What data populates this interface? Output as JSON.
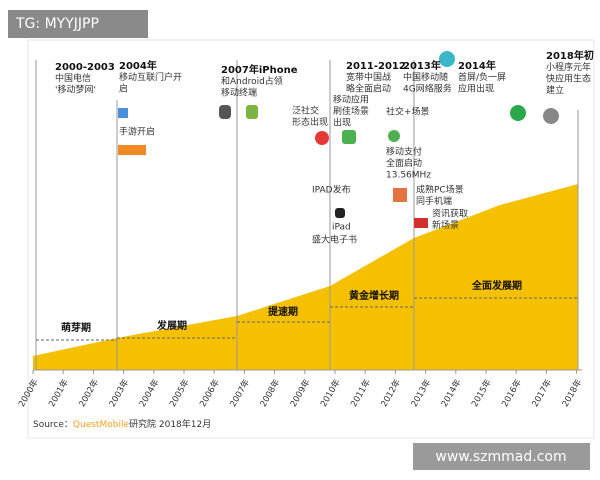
{
  "watermark_top": "TG: MYYJJPP",
  "milestones": [
    {
      "lines": [
        "2000-2003",
        "中国电信",
        "'移动梦网'"
      ]
    },
    {
      "lines": [
        "2004年",
        "移动互联门户开",
        "启"
      ]
    },
    {
      "lines": [
        "2007年iPhone",
        "和Android占领",
        "移动终端"
      ]
    },
    {
      "lines": [
        "2011-2012",
        "宽带中国战",
        "略全面启动"
      ]
    },
    {
      "lines": [
        "2013年",
        "中国移动随",
        "4G网络服务"
      ]
    },
    {
      "lines": [
        "2014年",
        "首屏/负一屏",
        "应用出现"
      ]
    },
    {
      "lines": [
        "2018年初",
        "小程序元年",
        "快应用生态",
        "建立"
      ]
    }
  ],
  "notes": [
    {
      "lines": [
        "手游开启"
      ]
    },
    {
      "lines": [
        "泛社交",
        "形态出现"
      ]
    },
    {
      "lines": [
        "移动应用",
        "刷佳场景",
        "出现"
      ]
    },
    {
      "lines": [
        "社交+场景"
      ]
    },
    {
      "lines": [
        "移动支付",
        "全面启动",
        "13.56MHz"
      ]
    },
    {
      "lines": [
        "IPAD发布"
      ]
    },
    {
      "lines": [
        "iPad"
      ]
    },
    {
      "lines": [
        "盛大电子书"
      ]
    },
    {
      "lines": [
        "成熟PC场景",
        "同手机端"
      ]
    },
    {
      "lines": [
        "资讯获取",
        "新场景"
      ]
    }
  ],
  "phases": [
    "萌芽期",
    "发展期",
    "提速期",
    "黄金增长期",
    "全面发展期"
  ],
  "years": [
    "2000年",
    "2001年",
    "2002年",
    "2003年",
    "2004年",
    "2005年",
    "2006年",
    "2007年",
    "2008年",
    "2009年",
    "2010年",
    "2011年",
    "2012年",
    "2013年",
    "2014年",
    "2015年",
    "2016年",
    "2017年",
    "2018年"
  ],
  "source": {
    "label": "Source：",
    "brand": "QuestMobile",
    "rest": "研究院 2018年12月"
  },
  "watermark_bottom": "www.szmmad.com"
}
